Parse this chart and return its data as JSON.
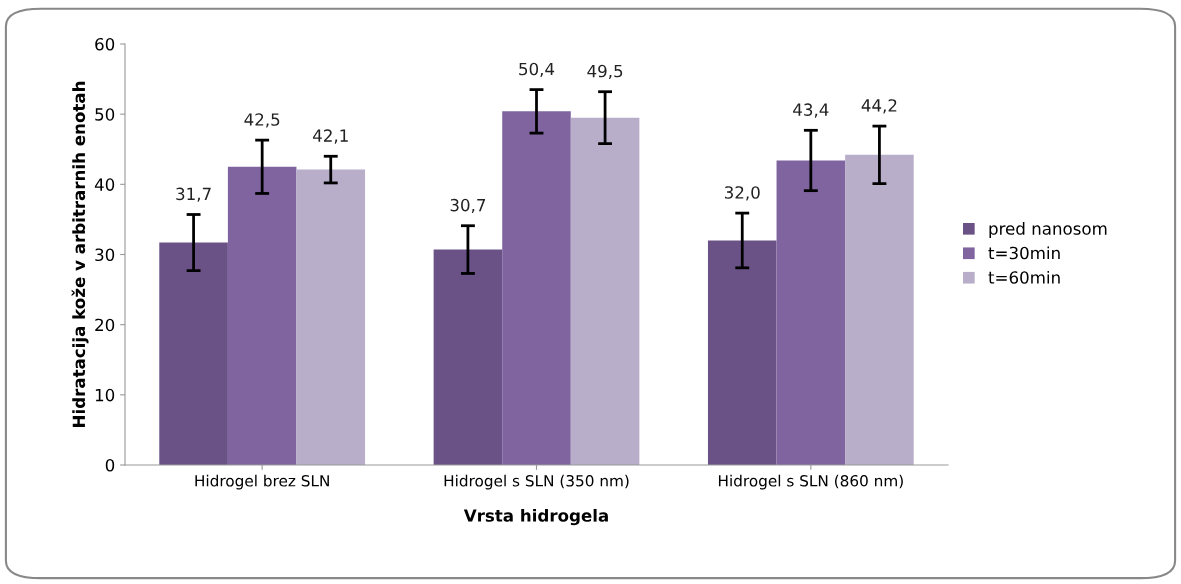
{
  "chart_data": {
    "type": "bar",
    "xlabel": "Vrsta hidrogela",
    "ylabel": "Hidratacija kože v arbitrarnih enotah",
    "categories": [
      "Hidrogel brez SLN",
      "Hidrogel s SLN (350 nm)",
      "Hidrogel s SLN (860 nm)"
    ],
    "series": [
      {
        "name": "pred nanosom",
        "color": "#6a5287",
        "values": [
          31.7,
          30.7,
          32.0
        ],
        "errors": [
          4.0,
          3.4,
          3.9
        ],
        "value_labels": [
          "31,7",
          "30,7",
          "32,0"
        ]
      },
      {
        "name": "t=30min",
        "color": "#7f64a0",
        "values": [
          42.5,
          50.4,
          43.4
        ],
        "errors": [
          3.8,
          3.1,
          4.3
        ],
        "value_labels": [
          "42,5",
          "50,4",
          "43,4"
        ]
      },
      {
        "name": "t=60min",
        "color": "#b9aeca",
        "values": [
          42.1,
          49.5,
          44.2
        ],
        "errors": [
          1.9,
          3.7,
          4.1
        ],
        "value_labels": [
          "42,1",
          "49,5",
          "44,2"
        ]
      }
    ],
    "ylim": [
      0,
      60
    ],
    "yticks": [
      0,
      10,
      20,
      30,
      40,
      50,
      60
    ],
    "grid": false,
    "legend": "right"
  }
}
